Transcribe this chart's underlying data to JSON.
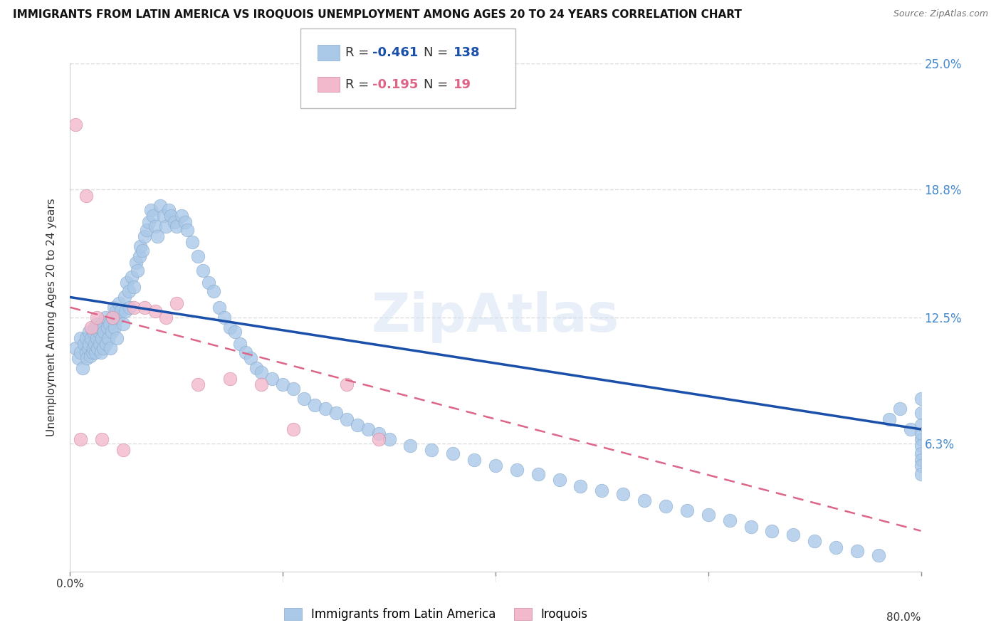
{
  "title": "IMMIGRANTS FROM LATIN AMERICA VS IROQUOIS UNEMPLOYMENT AMONG AGES 20 TO 24 YEARS CORRELATION CHART",
  "source": "Source: ZipAtlas.com",
  "ylabel": "Unemployment Among Ages 20 to 24 years",
  "blue_label": "Immigrants from Latin America",
  "pink_label": "Iroquois",
  "blue_R": "-0.461",
  "blue_N": "138",
  "pink_R": "-0.195",
  "pink_N": "19",
  "blue_color": "#aac8e8",
  "pink_color": "#f2b8cc",
  "blue_line_color": "#1a4faa",
  "pink_line_color": "#dd6688",
  "grid_color": "#dddddd",
  "right_label_color": "#4488cc",
  "xmin": 0.0,
  "xmax": 0.8,
  "ymin": 0.0,
  "ymax": 0.25,
  "blue_scatter_x": [
    0.005,
    0.008,
    0.01,
    0.01,
    0.012,
    0.013,
    0.015,
    0.015,
    0.016,
    0.017,
    0.018,
    0.018,
    0.019,
    0.02,
    0.021,
    0.022,
    0.022,
    0.023,
    0.023,
    0.024,
    0.025,
    0.025,
    0.026,
    0.027,
    0.028,
    0.028,
    0.029,
    0.03,
    0.03,
    0.031,
    0.032,
    0.033,
    0.034,
    0.035,
    0.036,
    0.037,
    0.038,
    0.039,
    0.04,
    0.041,
    0.042,
    0.043,
    0.044,
    0.045,
    0.046,
    0.048,
    0.05,
    0.051,
    0.052,
    0.053,
    0.055,
    0.056,
    0.058,
    0.06,
    0.062,
    0.063,
    0.065,
    0.066,
    0.068,
    0.07,
    0.072,
    0.074,
    0.076,
    0.078,
    0.08,
    0.082,
    0.085,
    0.088,
    0.09,
    0.093,
    0.095,
    0.098,
    0.1,
    0.105,
    0.108,
    0.11,
    0.115,
    0.12,
    0.125,
    0.13,
    0.135,
    0.14,
    0.145,
    0.15,
    0.155,
    0.16,
    0.165,
    0.17,
    0.175,
    0.18,
    0.19,
    0.2,
    0.21,
    0.22,
    0.23,
    0.24,
    0.25,
    0.26,
    0.27,
    0.28,
    0.29,
    0.3,
    0.32,
    0.34,
    0.36,
    0.38,
    0.4,
    0.42,
    0.44,
    0.46,
    0.48,
    0.5,
    0.52,
    0.54,
    0.56,
    0.58,
    0.6,
    0.62,
    0.64,
    0.66,
    0.68,
    0.7,
    0.72,
    0.74,
    0.76,
    0.77,
    0.78,
    0.79,
    0.8,
    0.8,
    0.8,
    0.8,
    0.8,
    0.8,
    0.8,
    0.8,
    0.8,
    0.8
  ],
  "blue_scatter_y": [
    0.11,
    0.105,
    0.108,
    0.115,
    0.1,
    0.112,
    0.108,
    0.115,
    0.105,
    0.11,
    0.112,
    0.118,
    0.106,
    0.115,
    0.108,
    0.11,
    0.118,
    0.112,
    0.12,
    0.108,
    0.115,
    0.122,
    0.11,
    0.118,
    0.112,
    0.12,
    0.108,
    0.115,
    0.122,
    0.11,
    0.118,
    0.125,
    0.112,
    0.12,
    0.115,
    0.122,
    0.11,
    0.118,
    0.125,
    0.13,
    0.12,
    0.128,
    0.115,
    0.125,
    0.132,
    0.128,
    0.122,
    0.135,
    0.128,
    0.142,
    0.138,
    0.13,
    0.145,
    0.14,
    0.152,
    0.148,
    0.155,
    0.16,
    0.158,
    0.165,
    0.168,
    0.172,
    0.178,
    0.175,
    0.17,
    0.165,
    0.18,
    0.175,
    0.17,
    0.178,
    0.175,
    0.172,
    0.17,
    0.175,
    0.172,
    0.168,
    0.162,
    0.155,
    0.148,
    0.142,
    0.138,
    0.13,
    0.125,
    0.12,
    0.118,
    0.112,
    0.108,
    0.105,
    0.1,
    0.098,
    0.095,
    0.092,
    0.09,
    0.085,
    0.082,
    0.08,
    0.078,
    0.075,
    0.072,
    0.07,
    0.068,
    0.065,
    0.062,
    0.06,
    0.058,
    0.055,
    0.052,
    0.05,
    0.048,
    0.045,
    0.042,
    0.04,
    0.038,
    0.035,
    0.032,
    0.03,
    0.028,
    0.025,
    0.022,
    0.02,
    0.018,
    0.015,
    0.012,
    0.01,
    0.008,
    0.075,
    0.08,
    0.07,
    0.065,
    0.085,
    0.078,
    0.072,
    0.068,
    0.062,
    0.058,
    0.055,
    0.052,
    0.048
  ],
  "pink_scatter_x": [
    0.005,
    0.01,
    0.015,
    0.02,
    0.025,
    0.03,
    0.04,
    0.05,
    0.06,
    0.07,
    0.08,
    0.09,
    0.1,
    0.12,
    0.15,
    0.18,
    0.21,
    0.26,
    0.29
  ],
  "pink_scatter_y": [
    0.22,
    0.065,
    0.185,
    0.12,
    0.125,
    0.065,
    0.125,
    0.06,
    0.13,
    0.13,
    0.128,
    0.125,
    0.132,
    0.092,
    0.095,
    0.092,
    0.07,
    0.092,
    0.065
  ]
}
